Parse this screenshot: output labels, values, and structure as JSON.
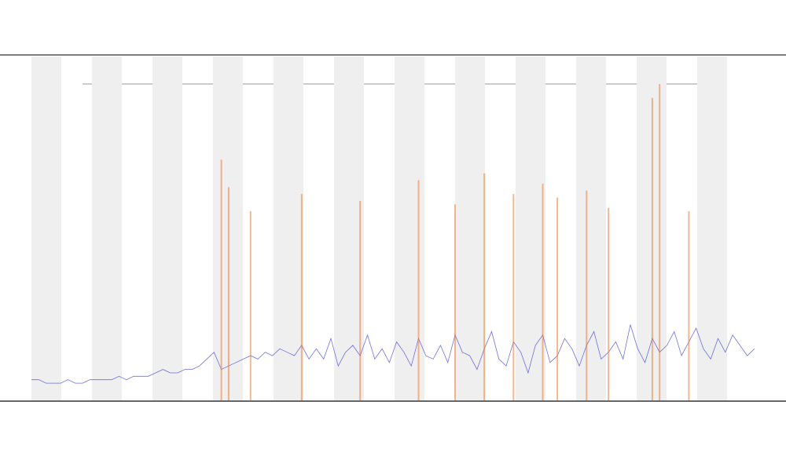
{
  "chart_data": {
    "type": "line",
    "xlim": [
      0,
      99
    ],
    "ylim": [
      0,
      100
    ],
    "series": [
      {
        "type": "line",
        "color": "#4a4ee0",
        "values": [
          6,
          6,
          5,
          5,
          5,
          6,
          5,
          5,
          6,
          6,
          6,
          6,
          7,
          6,
          7,
          7,
          7,
          8,
          9,
          8,
          8,
          9,
          9,
          10,
          12,
          14,
          9,
          10,
          11,
          12,
          13,
          12,
          14,
          13,
          15,
          14,
          13,
          16,
          12,
          15,
          12,
          18,
          10,
          14,
          16,
          13,
          19,
          12,
          15,
          11,
          17,
          14,
          10,
          18,
          13,
          12,
          16,
          11,
          19,
          14,
          13,
          9,
          15,
          20,
          12,
          10,
          17,
          14,
          8,
          16,
          19,
          11,
          13,
          18,
          15,
          10,
          16,
          20,
          12,
          14,
          17,
          12,
          22,
          15,
          11,
          18,
          14,
          16,
          20,
          13,
          17,
          21,
          15,
          12,
          18,
          14,
          19,
          16,
          13,
          15
        ]
      },
      {
        "type": "bar",
        "color": "#f07a30",
        "x": [
          26,
          27,
          30,
          37,
          45,
          53,
          58,
          62,
          66,
          70,
          72,
          76,
          79,
          85,
          86,
          90
        ],
        "values": [
          70,
          62,
          55,
          60,
          58,
          64,
          57,
          66,
          60,
          63,
          59,
          61,
          56,
          88,
          92,
          55
        ]
      }
    ]
  }
}
